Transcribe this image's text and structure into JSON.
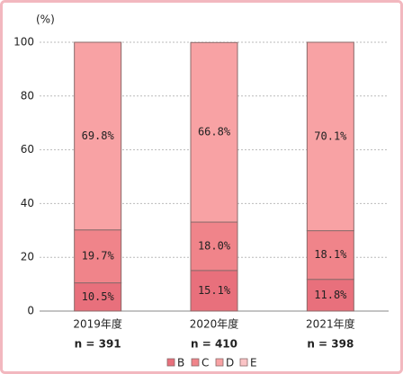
{
  "chart_data": {
    "type": "stacked_bar",
    "y_unit": "(%)",
    "categories": [
      "2019年度",
      "2020年度",
      "2021年度"
    ],
    "sample_sizes": [
      "n = 391",
      "n = 410",
      "n = 398"
    ],
    "series": [
      {
        "name": "B",
        "color": "#e8707c",
        "values": [
          10.5,
          15.1,
          11.8
        ],
        "value_labels": [
          "10.5%",
          "15.1%",
          "11.8%"
        ]
      },
      {
        "name": "C",
        "color": "#f0848a",
        "values": [
          19.7,
          18.0,
          18.1
        ],
        "value_labels": [
          "19.7%",
          "18.0%",
          "18.1%"
        ]
      },
      {
        "name": "D",
        "color": "#f8a2a4",
        "values": [
          69.8,
          66.8,
          70.1
        ],
        "value_labels": [
          "69.8%",
          "66.8%",
          "70.1%"
        ]
      },
      {
        "name": "E",
        "color": "#fbc4c6",
        "values": [
          null,
          null,
          null
        ]
      }
    ],
    "ylim": [
      0,
      100
    ],
    "yticks": [
      0,
      20,
      40,
      60,
      80,
      100
    ],
    "grid": true
  }
}
